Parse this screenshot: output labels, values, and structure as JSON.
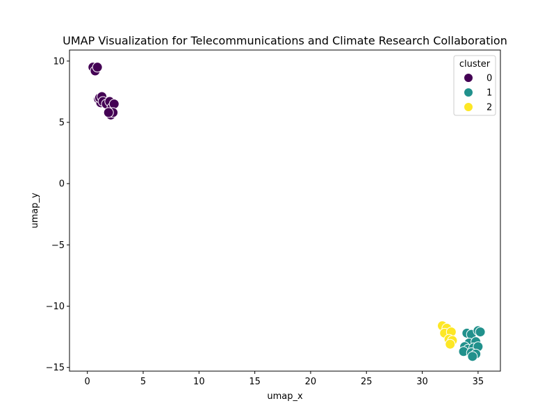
{
  "chart_data": {
    "type": "scatter",
    "title": "UMAP Visualization for Telecommunications and Climate Research Collaboration",
    "xlabel": "umap_x",
    "ylabel": "umap_y",
    "xlim": [
      -1.6,
      37.0
    ],
    "ylim": [
      -15.3,
      10.9
    ],
    "xticks": [
      0,
      5,
      10,
      15,
      20,
      25,
      30,
      35
    ],
    "yticks": [
      -15,
      -10,
      -5,
      0,
      5,
      10
    ],
    "grid": false,
    "legend": {
      "title": "cluster",
      "placement": "top-right"
    },
    "series": [
      {
        "name": "0",
        "color": "#440154",
        "points": [
          [
            0.5,
            9.5
          ],
          [
            0.7,
            9.2
          ],
          [
            0.9,
            9.5
          ],
          [
            1.0,
            6.9
          ],
          [
            1.2,
            6.6
          ],
          [
            1.1,
            7.0
          ],
          [
            1.3,
            7.1
          ],
          [
            1.4,
            6.7
          ],
          [
            1.7,
            6.5
          ],
          [
            2.0,
            6.7
          ],
          [
            2.2,
            6.2
          ],
          [
            2.4,
            6.5
          ],
          [
            2.1,
            5.6
          ],
          [
            2.3,
            5.8
          ],
          [
            1.9,
            5.8
          ]
        ]
      },
      {
        "name": "1",
        "color": "#21918c",
        "points": [
          [
            34.0,
            -12.2
          ],
          [
            34.4,
            -12.3
          ],
          [
            35.0,
            -12.0
          ],
          [
            35.2,
            -12.1
          ],
          [
            34.2,
            -13.0
          ],
          [
            34.8,
            -12.9
          ],
          [
            33.8,
            -13.3
          ],
          [
            34.1,
            -13.5
          ],
          [
            34.6,
            -13.4
          ],
          [
            35.0,
            -13.3
          ],
          [
            33.7,
            -13.7
          ],
          [
            34.4,
            -13.8
          ],
          [
            34.8,
            -13.9
          ],
          [
            34.5,
            -14.1
          ]
        ]
      },
      {
        "name": "2",
        "color": "#fde725",
        "points": [
          [
            31.8,
            -11.6
          ],
          [
            32.2,
            -11.8
          ],
          [
            32.0,
            -12.2
          ],
          [
            32.6,
            -12.1
          ],
          [
            32.4,
            -12.7
          ],
          [
            32.7,
            -12.8
          ],
          [
            32.5,
            -13.1
          ]
        ]
      }
    ]
  }
}
